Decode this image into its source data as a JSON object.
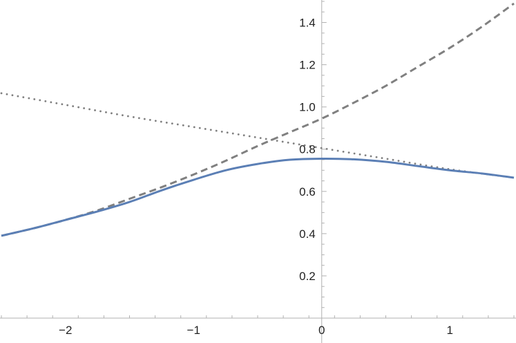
{
  "chart_data": {
    "type": "line",
    "title": "",
    "xlabel": "",
    "ylabel": "",
    "xlim": [
      -2.5,
      1.5
    ],
    "ylim": [
      0,
      1.5
    ],
    "x_ticks": [
      -2,
      -1,
      0,
      1
    ],
    "x_tick_labels": [
      "−2",
      "−1",
      "0",
      "1"
    ],
    "y_ticks": [
      0.2,
      0.4,
      0.6,
      0.8,
      1.0,
      1.2,
      1.4
    ],
    "y_tick_labels": [
      "0.2",
      "0.4",
      "0.6",
      "0.8",
      "1.0",
      "1.2",
      "1.4"
    ],
    "grid": false,
    "legend": "none",
    "series": [
      {
        "style": "solid",
        "color": "#5b7fb5",
        "x": [
          -2.5,
          -2.25,
          -2.0,
          -1.75,
          -1.5,
          -1.25,
          -1.0,
          -0.75,
          -0.5,
          -0.25,
          0.0,
          0.25,
          0.5,
          0.75,
          1.0,
          1.25,
          1.5
        ],
        "y": [
          0.39,
          0.425,
          0.465,
          0.505,
          0.55,
          0.605,
          0.655,
          0.7,
          0.73,
          0.75,
          0.755,
          0.752,
          0.74,
          0.72,
          0.7,
          0.685,
          0.665
        ]
      },
      {
        "style": "dashed",
        "color": "#808080",
        "x": [
          -2.5,
          -2.25,
          -2.0,
          -1.75,
          -1.5,
          -1.25,
          -1.0,
          -0.75,
          -0.5,
          -0.25,
          0.0,
          0.25,
          0.5,
          0.75,
          1.0,
          1.25,
          1.5
        ],
        "y": [
          0.39,
          0.425,
          0.465,
          0.51,
          0.565,
          0.62,
          0.68,
          0.745,
          0.815,
          0.88,
          0.945,
          1.02,
          1.1,
          1.19,
          1.28,
          1.38,
          1.49
        ]
      },
      {
        "style": "dotted",
        "color": "#808080",
        "x": [
          -2.5,
          -2.0,
          -1.5,
          -1.0,
          -0.5,
          0.0,
          0.5,
          1.0,
          1.5
        ],
        "y": [
          1.065,
          1.01,
          0.955,
          0.905,
          0.855,
          0.805,
          0.755,
          0.705,
          0.665
        ]
      }
    ]
  }
}
